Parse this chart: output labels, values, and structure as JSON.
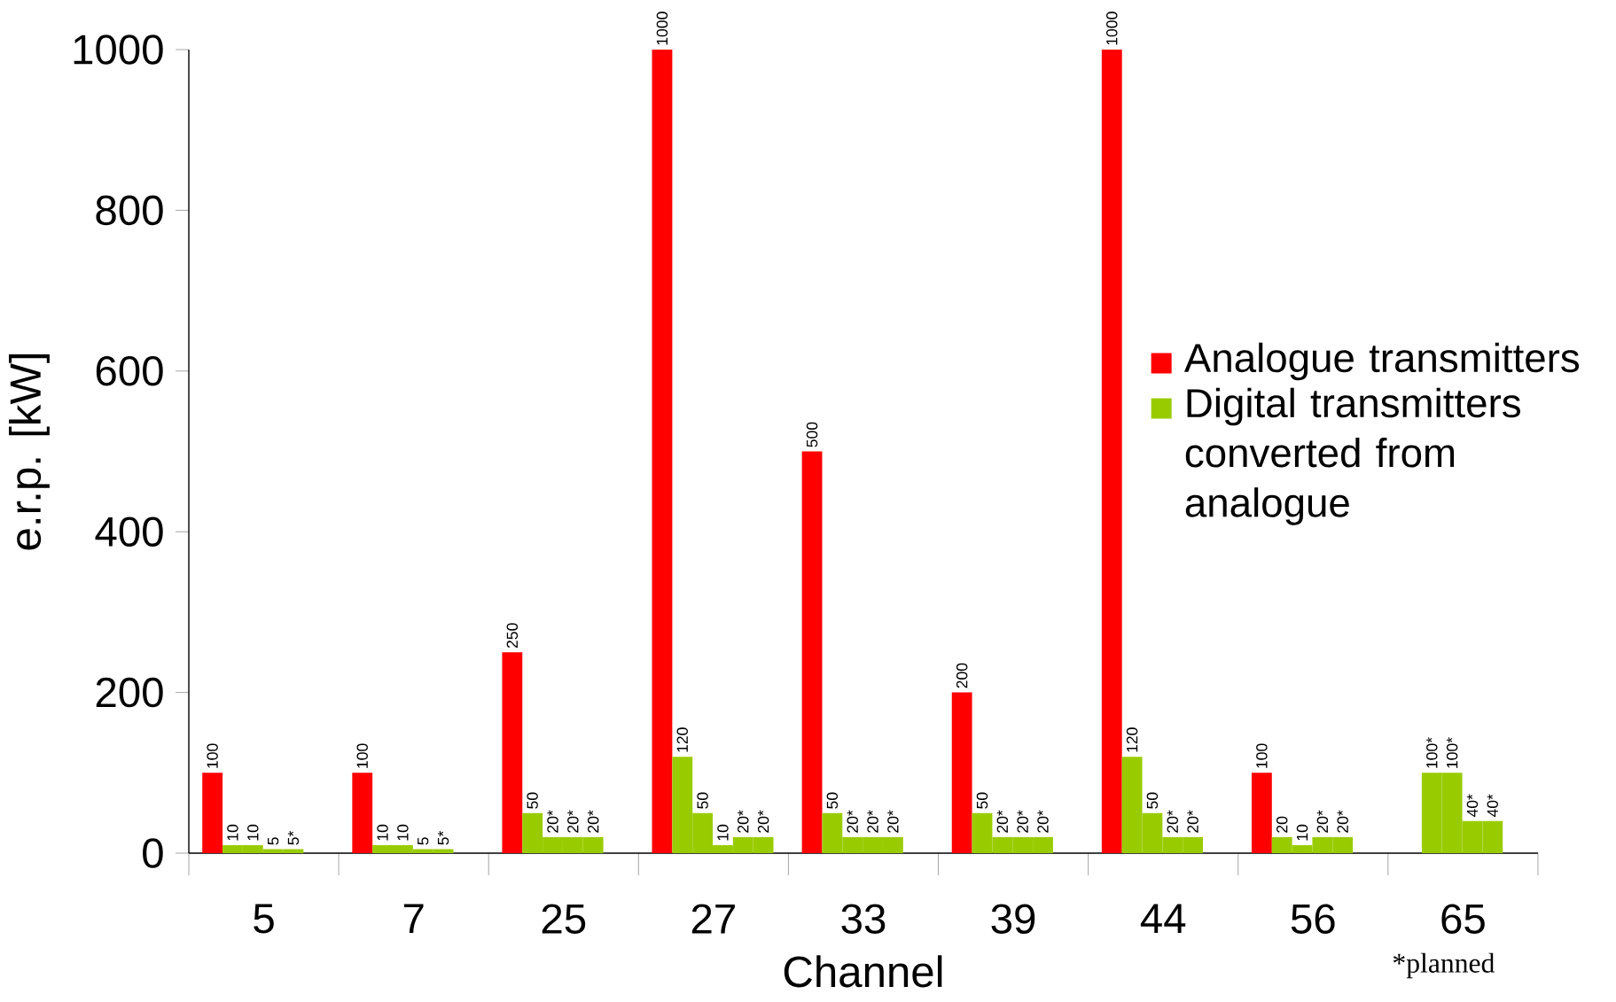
{
  "chart_data": {
    "type": "bar",
    "xlabel": "Channel",
    "ylabel": "e.r.p. [kW]",
    "categories": [
      "5",
      "7",
      "25",
      "27",
      "33",
      "39",
      "44",
      "56",
      "65"
    ],
    "ylim": [
      0,
      1000
    ],
    "yticks": [
      0,
      200,
      400,
      600,
      800,
      1000
    ],
    "legend": "right",
    "series": [
      {
        "name": "Analogue transmitters",
        "color": "#ff0000",
        "values": [
          100,
          100,
          250,
          1000,
          500,
          200,
          1000,
          100,
          null
        ],
        "value_labels": [
          "100",
          "100",
          "250",
          "1000",
          "500",
          "200",
          "1000",
          "100",
          null
        ]
      },
      {
        "name": "Digital transmitters converted from analogue",
        "color": "#99cc00",
        "values": [
          10,
          10,
          50,
          120,
          50,
          50,
          120,
          20,
          100
        ],
        "value_labels": [
          "10",
          "10",
          "50",
          "120",
          "50",
          "50",
          "120",
          "20",
          "100*"
        ]
      },
      {
        "color": "#99cc00",
        "values": [
          10,
          10,
          20,
          50,
          20,
          20,
          50,
          10,
          100
        ],
        "value_labels": [
          "10",
          "10",
          "20*",
          "50",
          "20*",
          "20*",
          "50",
          "10",
          "100*"
        ]
      },
      {
        "color": "#99cc00",
        "values": [
          5,
          5,
          20,
          10,
          20,
          20,
          20,
          20,
          40
        ],
        "value_labels": [
          "5",
          "5",
          "20*",
          "10",
          "20*",
          "20*",
          "20*",
          "20*",
          "40*"
        ]
      },
      {
        "color": "#99cc00",
        "values": [
          5,
          5,
          20,
          20,
          20,
          20,
          20,
          20,
          40
        ],
        "value_labels": [
          "5*",
          "5*",
          "20*",
          "20*",
          "20*",
          "20*",
          "20*",
          "20*",
          "40*"
        ]
      },
      {
        "color": "#99cc00",
        "values": [
          null,
          null,
          null,
          20,
          null,
          null,
          null,
          null,
          null
        ],
        "value_labels": [
          null,
          null,
          null,
          "20*",
          null,
          null,
          null,
          null,
          null
        ]
      }
    ],
    "annotations": [
      "*planned"
    ]
  }
}
